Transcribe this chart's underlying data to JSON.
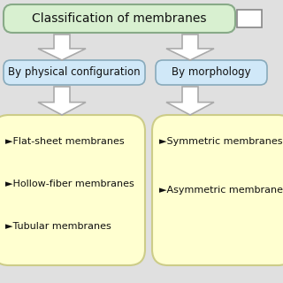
{
  "title": "Classification of membranes",
  "title_bg": "#d8f0d0",
  "title_border": "#88aa88",
  "left_category": "By physical configuration",
  "right_category": "By morphology",
  "category_bg": "#d0e8f8",
  "category_border": "#88aabb",
  "left_items_line1": "►Flat-sheet membranes",
  "left_items_line2": "►Hollow-fiber membranes",
  "left_items_line3": "►Tubular membranes",
  "right_items_line1": "►Symmetric membranes",
  "right_items_line2": "►Asymmetric membranes",
  "items_bg": "#ffffd0",
  "items_border": "#cccc88",
  "arrow_color": "#aaaaaa",
  "bg_color": "#e0e0e0",
  "text_color": "#111111",
  "font_size_title": 10,
  "font_size_cat": 8.5,
  "font_size_items": 8
}
